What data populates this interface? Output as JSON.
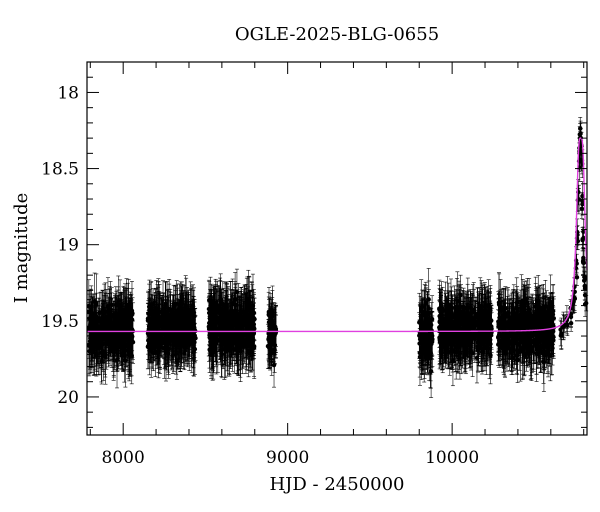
{
  "chart_data": {
    "type": "scatter",
    "title": "OGLE-2025-BLG-0655",
    "xlabel": "HJD - 2450000",
    "ylabel": "I magnitude",
    "xlim": [
      7780,
      10820
    ],
    "ylim": [
      20.25,
      17.8
    ],
    "y_inverted": true,
    "x_ticks": [
      8000,
      9000,
      10000
    ],
    "y_ticks": [
      18,
      18.5,
      19,
      19.5,
      20
    ],
    "x_tick_labels": [
      "8000",
      "9000",
      "10000"
    ],
    "y_tick_labels": [
      "18",
      "18.5",
      "19",
      "19.5",
      "20"
    ],
    "grid": false,
    "legend": "none",
    "series": [
      {
        "kind": "points_with_errorbars",
        "color": "#000000",
        "baseline_mag": 19.57,
        "seasons": [
          {
            "x_start": 7790,
            "x_end": 8060,
            "mean_mag": 19.57,
            "scatter": 0.13,
            "err": 0.17
          },
          {
            "x_start": 8150,
            "x_end": 8440,
            "mean_mag": 19.55,
            "scatter": 0.12,
            "err": 0.17
          },
          {
            "x_start": 8520,
            "x_end": 8800,
            "mean_mag": 19.55,
            "scatter": 0.13,
            "err": 0.18
          },
          {
            "x_start": 8880,
            "x_end": 8930,
            "mean_mag": 19.57,
            "scatter": 0.12,
            "err": 0.16
          },
          {
            "x_start": 9800,
            "x_end": 9880,
            "mean_mag": 19.58,
            "scatter": 0.14,
            "err": 0.18
          },
          {
            "x_start": 9920,
            "x_end": 10240,
            "mean_mag": 19.56,
            "scatter": 0.12,
            "err": 0.17
          },
          {
            "x_start": 10280,
            "x_end": 10620,
            "mean_mag": 19.56,
            "scatter": 0.13,
            "err": 0.17
          }
        ],
        "event_points": [
          [
            10660,
            19.58
          ],
          [
            10680,
            19.55
          ],
          [
            10700,
            19.52
          ],
          [
            10720,
            19.47
          ],
          [
            10735,
            19.4
          ],
          [
            10745,
            19.3
          ],
          [
            10755,
            19.15
          ],
          [
            10762,
            18.95
          ],
          [
            10768,
            18.7
          ],
          [
            10773,
            18.45
          ],
          [
            10777,
            18.3
          ],
          [
            10780,
            18.26
          ],
          [
            10784,
            18.3
          ],
          [
            10788,
            18.45
          ],
          [
            10792,
            18.7
          ],
          [
            10796,
            18.95
          ],
          [
            10800,
            19.1
          ],
          [
            10806,
            19.25
          ],
          [
            10812,
            19.35
          ]
        ]
      },
      {
        "kind": "model_curve",
        "color": "#e040e0",
        "baseline_mag": 19.57,
        "peak_x": 10782,
        "peak_mag": 18.3
      }
    ]
  }
}
